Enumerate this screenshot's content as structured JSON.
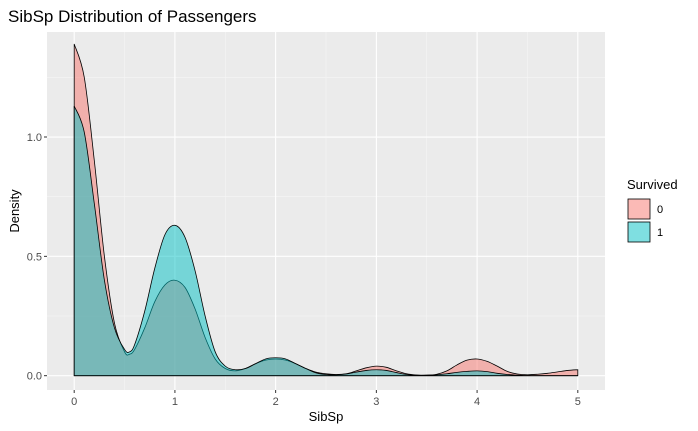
{
  "chart_data": {
    "type": "area",
    "title": "SibSp Distribution of Passengers",
    "xlabel": "SibSp",
    "ylabel": "Density",
    "xlim": [
      -0.27,
      5.27
    ],
    "ylim": [
      -0.06,
      1.44
    ],
    "x_ticks": [
      0,
      1,
      2,
      3,
      4,
      5
    ],
    "x_tick_labels": [
      "0",
      "1",
      "2",
      "3",
      "4",
      "5"
    ],
    "y_ticks": [
      0.0,
      0.5,
      1.0
    ],
    "y_tick_labels": [
      "0.0",
      "0.5",
      "1.0"
    ],
    "grid": true,
    "legend_position": "right",
    "legend_title": "Survived",
    "background": "#ebebeb",
    "series": [
      {
        "name": "0",
        "color": "#f8766d",
        "x": [
          0,
          0.1,
          0.2,
          0.3,
          0.4,
          0.5,
          0.55,
          0.6,
          0.7,
          0.8,
          0.9,
          1.0,
          1.1,
          1.2,
          1.3,
          1.4,
          1.5,
          1.6,
          1.7,
          1.8,
          1.9,
          2.0,
          2.1,
          2.2,
          2.3,
          2.4,
          2.5,
          2.6,
          2.7,
          2.8,
          2.9,
          3.0,
          3.1,
          3.2,
          3.3,
          3.4,
          3.5,
          3.6,
          3.7,
          3.8,
          3.9,
          4.0,
          4.1,
          4.2,
          4.3,
          4.4,
          4.5,
          4.6,
          4.7,
          4.8,
          4.9,
          5.0
        ],
        "values": [
          1.39,
          1.25,
          0.9,
          0.5,
          0.22,
          0.1,
          0.09,
          0.11,
          0.2,
          0.31,
          0.38,
          0.4,
          0.37,
          0.28,
          0.16,
          0.07,
          0.03,
          0.02,
          0.03,
          0.05,
          0.065,
          0.07,
          0.065,
          0.05,
          0.03,
          0.015,
          0.008,
          0.005,
          0.008,
          0.02,
          0.033,
          0.04,
          0.035,
          0.02,
          0.008,
          0.003,
          0.002,
          0.006,
          0.02,
          0.045,
          0.065,
          0.07,
          0.06,
          0.04,
          0.018,
          0.007,
          0.004,
          0.006,
          0.01,
          0.016,
          0.022,
          0.025
        ]
      },
      {
        "name": "1",
        "color": "#00bfc4",
        "x": [
          0,
          0.1,
          0.2,
          0.3,
          0.4,
          0.5,
          0.55,
          0.6,
          0.7,
          0.8,
          0.9,
          1.0,
          1.1,
          1.2,
          1.3,
          1.4,
          1.5,
          1.6,
          1.7,
          1.8,
          1.9,
          2.0,
          2.1,
          2.2,
          2.3,
          2.4,
          2.5,
          2.6,
          2.7,
          2.8,
          2.9,
          3.0,
          3.1,
          3.2,
          3.3,
          3.4,
          3.5,
          3.6,
          3.7,
          3.8,
          3.9,
          4.0,
          4.1,
          4.2,
          4.3,
          4.4,
          4.5,
          4.6,
          4.7,
          4.8,
          4.9,
          5.0
        ],
        "values": [
          1.13,
          1.02,
          0.72,
          0.4,
          0.2,
          0.11,
          0.1,
          0.13,
          0.27,
          0.45,
          0.59,
          0.63,
          0.58,
          0.44,
          0.25,
          0.1,
          0.04,
          0.025,
          0.03,
          0.05,
          0.07,
          0.075,
          0.07,
          0.05,
          0.03,
          0.012,
          0.005,
          0.004,
          0.007,
          0.015,
          0.022,
          0.025,
          0.022,
          0.013,
          0.005,
          0.002,
          0.002,
          0.004,
          0.008,
          0.014,
          0.018,
          0.02,
          0.017,
          0.01,
          0.005,
          0.002,
          0.0,
          0.0,
          0.0,
          0.0,
          0.0,
          0.0
        ]
      }
    ]
  }
}
